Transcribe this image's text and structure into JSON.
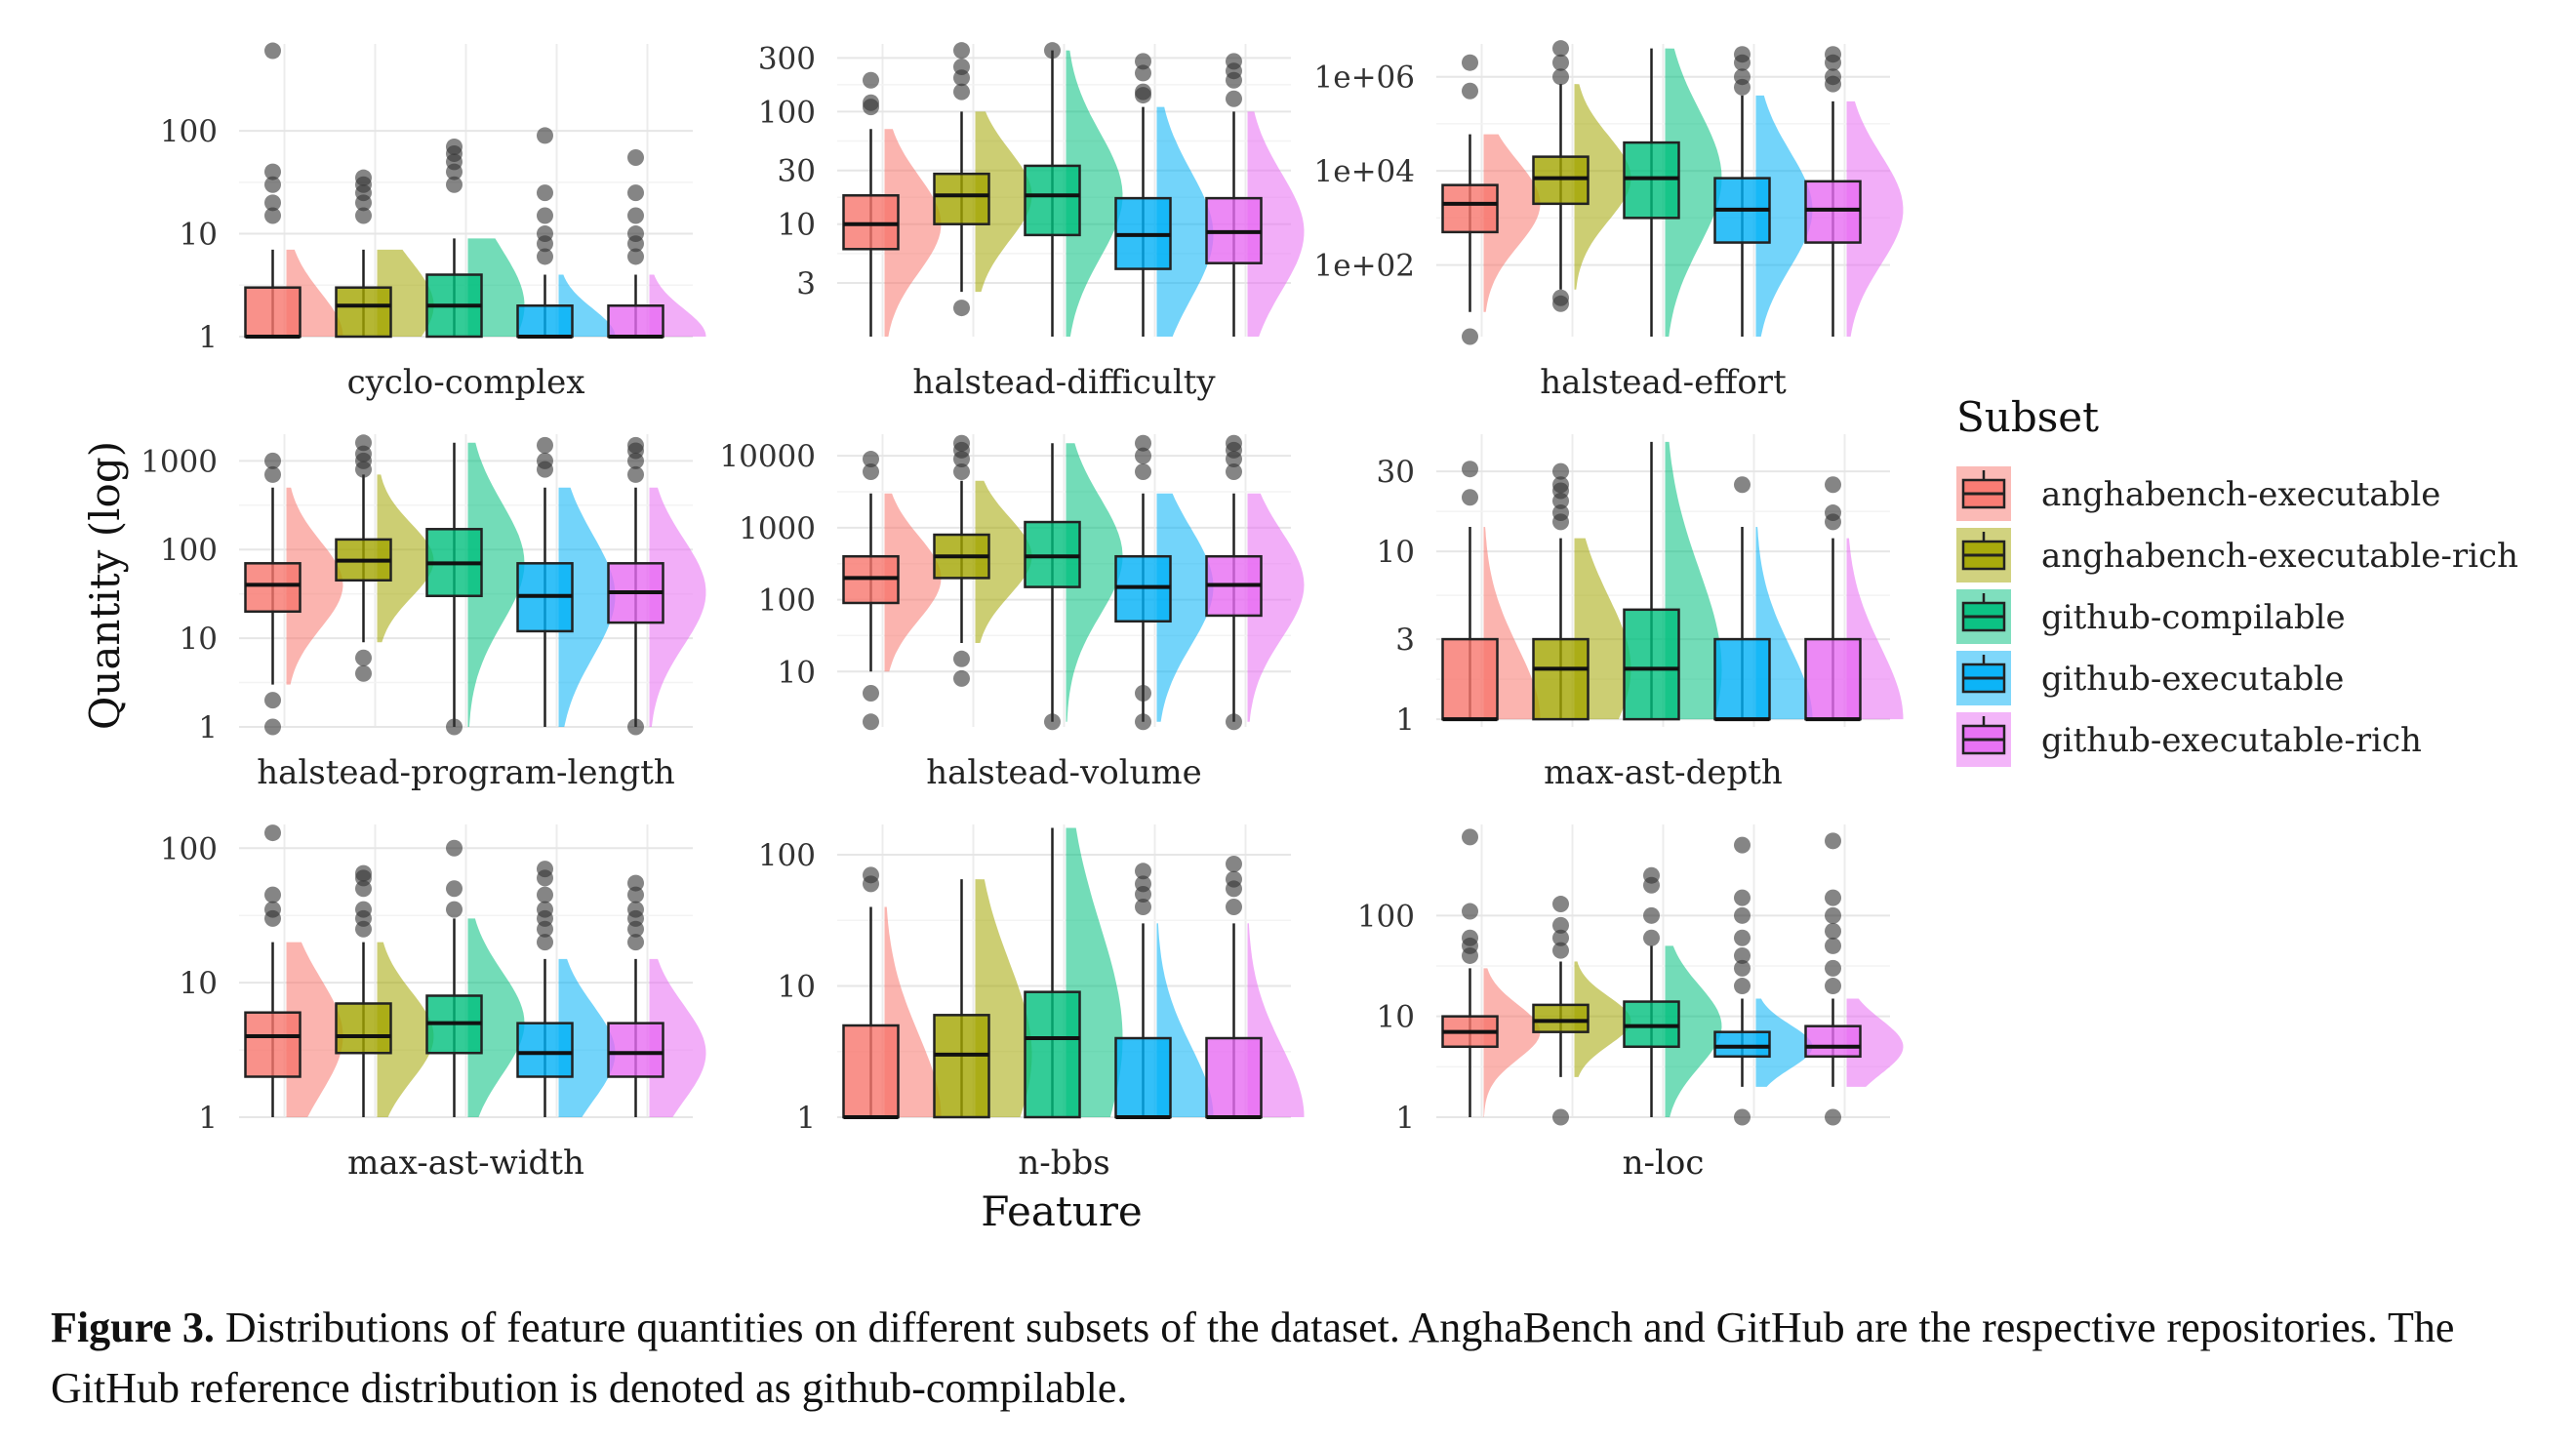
{
  "figure": {
    "ylabel": "Quantity (log)",
    "xlabel": "Feature",
    "legend_title": "Subset",
    "caption_label": "Figure 3.",
    "caption_text": "Distributions of feature quantities on different subsets of the dataset. AnghaBench and GitHub are the respective repositories. The GitHub reference distribution is denoted as github-compilable."
  },
  "subsets": [
    {
      "name": "anghabench-executable",
      "color": "#F8766D"
    },
    {
      "name": "anghabench-executable-rich",
      "color": "#A3A500"
    },
    {
      "name": "github-compilable",
      "color": "#00BF7D"
    },
    {
      "name": "github-executable",
      "color": "#00B0F6"
    },
    {
      "name": "github-executable-rich",
      "color": "#E76BF3"
    }
  ],
  "chart_data": [
    {
      "type": "boxplot",
      "title": "cyclo-complex",
      "scale": "log10",
      "ylim": [
        1,
        700
      ],
      "ticks": [
        1,
        10,
        100
      ],
      "tick_labels": [
        "1",
        "10",
        "100"
      ],
      "series": [
        {
          "subset": "anghabench-executable",
          "q1": 1,
          "median": 1,
          "q3": 3,
          "whisker_low": 1,
          "whisker_high": 7,
          "outliers": [
            15,
            20,
            30,
            40,
            600
          ]
        },
        {
          "subset": "anghabench-executable-rich",
          "q1": 1,
          "median": 2,
          "q3": 3,
          "whisker_low": 1,
          "whisker_high": 7,
          "outliers": [
            15,
            20,
            25,
            30,
            35
          ]
        },
        {
          "subset": "github-compilable",
          "q1": 1,
          "median": 2,
          "q3": 4,
          "whisker_low": 1,
          "whisker_high": 9,
          "outliers": [
            30,
            40,
            50,
            60,
            70
          ]
        },
        {
          "subset": "github-executable",
          "q1": 1,
          "median": 1,
          "q3": 2,
          "whisker_low": 1,
          "whisker_high": 4,
          "outliers": [
            6,
            8,
            10,
            15,
            25,
            90
          ]
        },
        {
          "subset": "github-executable-rich",
          "q1": 1,
          "median": 1,
          "q3": 2,
          "whisker_low": 1,
          "whisker_high": 4,
          "outliers": [
            6,
            8,
            10,
            15,
            25,
            55
          ]
        }
      ]
    },
    {
      "type": "boxplot",
      "title": "halstead-difficulty",
      "scale": "log10",
      "ylim": [
        1,
        400
      ],
      "ticks": [
        3,
        10,
        30,
        100,
        300
      ],
      "tick_labels": [
        "3",
        "10",
        "30",
        "100",
        "300"
      ],
      "series": [
        {
          "subset": "anghabench-executable",
          "q1": 6,
          "median": 10,
          "q3": 18,
          "whisker_low": 1,
          "whisker_high": 70,
          "outliers": [
            110,
            120,
            190
          ]
        },
        {
          "subset": "anghabench-executable-rich",
          "q1": 10,
          "median": 18,
          "q3": 28,
          "whisker_low": 2.5,
          "whisker_high": 100,
          "outliers": [
            1.8,
            150,
            200,
            250,
            350
          ]
        },
        {
          "subset": "github-compilable",
          "q1": 8,
          "median": 18,
          "q3": 33,
          "whisker_low": 1,
          "whisker_high": 350,
          "outliers": [
            350
          ]
        },
        {
          "subset": "github-executable",
          "q1": 4,
          "median": 8,
          "q3": 17,
          "whisker_low": 1,
          "whisker_high": 110,
          "outliers": [
            140,
            150,
            220,
            280
          ]
        },
        {
          "subset": "github-executable-rich",
          "q1": 4.5,
          "median": 8.5,
          "q3": 17,
          "whisker_low": 1,
          "whisker_high": 100,
          "outliers": [
            130,
            190,
            230,
            280
          ]
        }
      ]
    },
    {
      "type": "boxplot",
      "title": "halstead-effort",
      "scale": "log10",
      "ylim": [
        3,
        5000000
      ],
      "ticks": [
        100,
        10000,
        1000000
      ],
      "tick_labels": [
        "1e+02",
        "1e+04",
        "1e+06"
      ],
      "series": [
        {
          "subset": "anghabench-executable",
          "q1": 500,
          "median": 2000,
          "q3": 5000,
          "whisker_low": 10,
          "whisker_high": 60000,
          "outliers": [
            3,
            500000,
            2000000
          ]
        },
        {
          "subset": "anghabench-executable-rich",
          "q1": 2000,
          "median": 7000,
          "q3": 20000,
          "whisker_low": 30,
          "whisker_high": 700000,
          "outliers": [
            15,
            20,
            1000000,
            2000000,
            4000000
          ]
        },
        {
          "subset": "github-compilable",
          "q1": 1000,
          "median": 7000,
          "q3": 40000,
          "whisker_low": 3,
          "whisker_high": 4000000,
          "outliers": []
        },
        {
          "subset": "github-executable",
          "q1": 300,
          "median": 1500,
          "q3": 7000,
          "whisker_low": 3,
          "whisker_high": 400000,
          "outliers": [
            600000,
            1000000,
            2000000,
            3000000
          ]
        },
        {
          "subset": "github-executable-rich",
          "q1": 300,
          "median": 1500,
          "q3": 6000,
          "whisker_low": 3,
          "whisker_high": 300000,
          "outliers": [
            700000,
            1000000,
            2000000,
            3000000
          ]
        }
      ]
    },
    {
      "type": "boxplot",
      "title": "halstead-program-length",
      "scale": "log10",
      "ylim": [
        1,
        2000
      ],
      "ticks": [
        1,
        10,
        100,
        1000
      ],
      "tick_labels": [
        "1",
        "10",
        "100",
        "1000"
      ],
      "series": [
        {
          "subset": "anghabench-executable",
          "q1": 20,
          "median": 40,
          "q3": 70,
          "whisker_low": 3,
          "whisker_high": 500,
          "outliers": [
            1,
            2,
            700,
            1000
          ]
        },
        {
          "subset": "anghabench-executable-rich",
          "q1": 45,
          "median": 75,
          "q3": 130,
          "whisker_low": 9,
          "whisker_high": 700,
          "outliers": [
            4,
            6,
            800,
            1000,
            1200,
            1600
          ]
        },
        {
          "subset": "github-compilable",
          "q1": 30,
          "median": 70,
          "q3": 170,
          "whisker_low": 1,
          "whisker_high": 1600,
          "outliers": [
            1
          ]
        },
        {
          "subset": "github-executable",
          "q1": 12,
          "median": 30,
          "q3": 70,
          "whisker_low": 1,
          "whisker_high": 500,
          "outliers": [
            800,
            1000,
            1500
          ]
        },
        {
          "subset": "github-executable-rich",
          "q1": 15,
          "median": 33,
          "q3": 70,
          "whisker_low": 1,
          "whisker_high": 500,
          "outliers": [
            1,
            700,
            1000,
            1300,
            1500
          ]
        }
      ]
    },
    {
      "type": "boxplot",
      "title": "halstead-volume",
      "scale": "log10",
      "ylim": [
        1.7,
        20000
      ],
      "ticks": [
        10,
        100,
        1000,
        10000
      ],
      "tick_labels": [
        "10",
        "100",
        "1000",
        "10000"
      ],
      "series": [
        {
          "subset": "anghabench-executable",
          "q1": 90,
          "median": 200,
          "q3": 400,
          "whisker_low": 10,
          "whisker_high": 3000,
          "outliers": [
            2,
            5,
            6000,
            9000
          ]
        },
        {
          "subset": "anghabench-executable-rich",
          "q1": 200,
          "median": 400,
          "q3": 800,
          "whisker_low": 25,
          "whisker_high": 4500,
          "outliers": [
            8,
            15,
            6000,
            9000,
            12000,
            15000
          ]
        },
        {
          "subset": "github-compilable",
          "q1": 150,
          "median": 400,
          "q3": 1200,
          "whisker_low": 2,
          "whisker_high": 15000,
          "outliers": [
            2
          ]
        },
        {
          "subset": "github-executable",
          "q1": 50,
          "median": 150,
          "q3": 400,
          "whisker_low": 2,
          "whisker_high": 3000,
          "outliers": [
            2,
            5,
            6000,
            10000,
            15000
          ]
        },
        {
          "subset": "github-executable-rich",
          "q1": 60,
          "median": 160,
          "q3": 400,
          "whisker_low": 2,
          "whisker_high": 3000,
          "outliers": [
            2,
            6000,
            9000,
            12000,
            15000
          ]
        }
      ]
    },
    {
      "type": "boxplot",
      "title": "max-ast-depth",
      "scale": "log10",
      "ylim": [
        0.9,
        50
      ],
      "ticks": [
        1,
        3,
        10,
        30
      ],
      "tick_labels": [
        "1",
        "3",
        "10",
        "30"
      ],
      "series": [
        {
          "subset": "anghabench-executable",
          "q1": 1,
          "median": 1,
          "q3": 3,
          "whisker_low": 1,
          "whisker_high": 14,
          "outliers": [
            21,
            31
          ]
        },
        {
          "subset": "anghabench-executable-rich",
          "q1": 1,
          "median": 2,
          "q3": 3,
          "whisker_low": 1,
          "whisker_high": 12,
          "outliers": [
            15,
            17,
            20,
            23,
            25,
            30
          ]
        },
        {
          "subset": "github-compilable",
          "q1": 1,
          "median": 2,
          "q3": 4.5,
          "whisker_low": 1,
          "whisker_high": 45,
          "outliers": []
        },
        {
          "subset": "github-executable",
          "q1": 1,
          "median": 1,
          "q3": 3,
          "whisker_low": 1,
          "whisker_high": 14,
          "outliers": [
            25
          ]
        },
        {
          "subset": "github-executable-rich",
          "q1": 1,
          "median": 1,
          "q3": 3,
          "whisker_low": 1,
          "whisker_high": 12,
          "outliers": [
            15,
            17,
            25
          ]
        }
      ]
    },
    {
      "type": "boxplot",
      "title": "max-ast-width",
      "scale": "log10",
      "ylim": [
        1,
        150
      ],
      "ticks": [
        1,
        10,
        100
      ],
      "tick_labels": [
        "1",
        "10",
        "100"
      ],
      "series": [
        {
          "subset": "anghabench-executable",
          "q1": 2,
          "median": 4,
          "q3": 6,
          "whisker_low": 1,
          "whisker_high": 20,
          "outliers": [
            30,
            35,
            45,
            130
          ]
        },
        {
          "subset": "anghabench-executable-rich",
          "q1": 3,
          "median": 4,
          "q3": 7,
          "whisker_low": 1,
          "whisker_high": 20,
          "outliers": [
            25,
            30,
            35,
            50,
            60,
            65
          ]
        },
        {
          "subset": "github-compilable",
          "q1": 3,
          "median": 5,
          "q3": 8,
          "whisker_low": 1,
          "whisker_high": 30,
          "outliers": [
            35,
            50,
            100
          ]
        },
        {
          "subset": "github-executable",
          "q1": 2,
          "median": 3,
          "q3": 5,
          "whisker_low": 1,
          "whisker_high": 15,
          "outliers": [
            20,
            25,
            30,
            35,
            45,
            60,
            70
          ]
        },
        {
          "subset": "github-executable-rich",
          "q1": 2,
          "median": 3,
          "q3": 5,
          "whisker_low": 1,
          "whisker_high": 15,
          "outliers": [
            20,
            25,
            30,
            35,
            45,
            55
          ]
        }
      ]
    },
    {
      "type": "boxplot",
      "title": "n-bbs",
      "scale": "log10",
      "ylim": [
        1,
        170
      ],
      "ticks": [
        1,
        10,
        100
      ],
      "tick_labels": [
        "1",
        "10",
        "100"
      ],
      "series": [
        {
          "subset": "anghabench-executable",
          "q1": 1,
          "median": 1,
          "q3": 5,
          "whisker_low": 1,
          "whisker_high": 40,
          "outliers": [
            60,
            70
          ]
        },
        {
          "subset": "anghabench-executable-rich",
          "q1": 1,
          "median": 3,
          "q3": 6,
          "whisker_low": 1,
          "whisker_high": 65,
          "outliers": []
        },
        {
          "subset": "github-compilable",
          "q1": 1,
          "median": 4,
          "q3": 9,
          "whisker_low": 1,
          "whisker_high": 160,
          "outliers": []
        },
        {
          "subset": "github-executable",
          "q1": 1,
          "median": 1,
          "q3": 4,
          "whisker_low": 1,
          "whisker_high": 30,
          "outliers": [
            40,
            50,
            60,
            75
          ]
        },
        {
          "subset": "github-executable-rich",
          "q1": 1,
          "median": 1,
          "q3": 4,
          "whisker_low": 1,
          "whisker_high": 30,
          "outliers": [
            40,
            55,
            65,
            85
          ]
        }
      ]
    },
    {
      "type": "boxplot",
      "title": "n-loc",
      "scale": "log10",
      "ylim": [
        1,
        800
      ],
      "ticks": [
        1,
        10,
        100
      ],
      "tick_labels": [
        "1",
        "10",
        "100"
      ],
      "series": [
        {
          "subset": "anghabench-executable",
          "q1": 5,
          "median": 7,
          "q3": 10,
          "whisker_low": 1,
          "whisker_high": 30,
          "outliers": [
            40,
            50,
            60,
            110,
            600
          ]
        },
        {
          "subset": "anghabench-executable-rich",
          "q1": 7,
          "median": 9,
          "q3": 13,
          "whisker_low": 2.5,
          "whisker_high": 35,
          "outliers": [
            1,
            45,
            60,
            80,
            130
          ]
        },
        {
          "subset": "github-compilable",
          "q1": 5,
          "median": 8,
          "q3": 14,
          "whisker_low": 1,
          "whisker_high": 50,
          "outliers": [
            60,
            100,
            200,
            250
          ]
        },
        {
          "subset": "github-executable",
          "q1": 4,
          "median": 5,
          "q3": 7,
          "whisker_low": 2,
          "whisker_high": 15,
          "outliers": [
            1,
            20,
            30,
            40,
            60,
            100,
            150,
            500
          ]
        },
        {
          "subset": "github-executable-rich",
          "q1": 4,
          "median": 5,
          "q3": 8,
          "whisker_low": 2,
          "whisker_high": 15,
          "outliers": [
            1,
            20,
            30,
            50,
            70,
            100,
            150,
            550
          ]
        }
      ]
    }
  ]
}
